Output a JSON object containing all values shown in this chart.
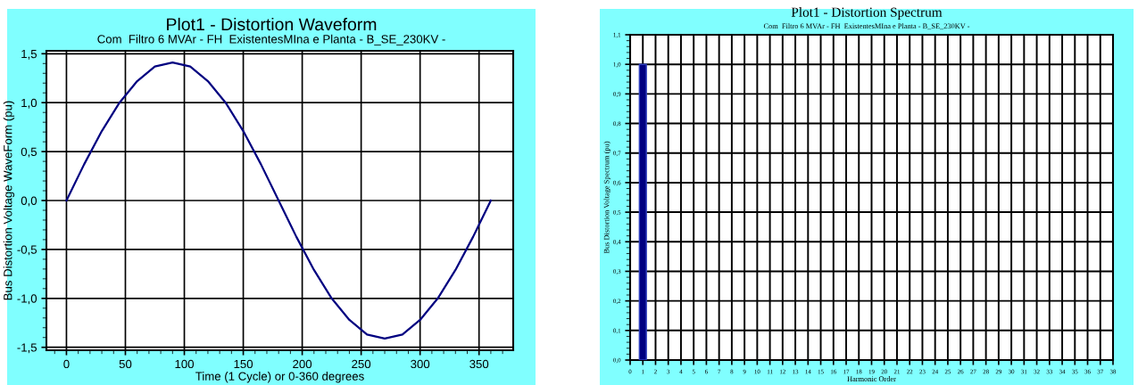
{
  "chart_data": [
    {
      "type": "line",
      "title": "Plot1 - Distortion Waveform",
      "subtitle": "Com  Filtro 6 MVAr - FH  ExistentesMIna e Planta - B_SE_230KV -",
      "xlabel": "Time (1 Cycle) or 0-360 degrees",
      "ylabel": "Bus Distortion Voltage WaveForm (pu)",
      "x": [
        0,
        15,
        30,
        45,
        60,
        75,
        90,
        105,
        120,
        135,
        150,
        165,
        180,
        195,
        210,
        225,
        240,
        255,
        270,
        285,
        300,
        315,
        330,
        345,
        360
      ],
      "series": [
        {
          "color": "#000080",
          "values": [
            0,
            0.37,
            0.71,
            1.0,
            1.22,
            1.37,
            1.41,
            1.37,
            1.22,
            1.0,
            0.71,
            0.37,
            0,
            -0.37,
            -0.71,
            -1.0,
            -1.22,
            -1.37,
            -1.41,
            -1.37,
            -1.22,
            -1.0,
            -0.71,
            -0.37,
            0
          ]
        }
      ],
      "xlim": [
        -17,
        379
      ],
      "xticks": [
        0,
        50,
        100,
        150,
        200,
        250,
        300,
        350
      ],
      "ylim": [
        -1.53,
        1.53
      ],
      "yticks": [
        {
          "value": -1.5,
          "label": "-1,5"
        },
        {
          "value": -1.0,
          "label": "-1,0"
        },
        {
          "value": -0.5,
          "label": "-0,5"
        },
        {
          "value": 0.0,
          "label": "0,0"
        },
        {
          "value": 0.5,
          "label": "0,5"
        },
        {
          "value": 1.0,
          "label": "1,0"
        },
        {
          "value": 1.5,
          "label": "1,5"
        }
      ],
      "grid": true,
      "marker": "none",
      "line_style": "solid",
      "legend": false
    },
    {
      "type": "bar",
      "title": "Plot1 - Distortion Spectrum",
      "subtitle": "Com  Filtro 6 MVAr - FH  ExistentesMIna e Planta - B_SE_230KV -",
      "xlabel": "Harmonic Order",
      "ylabel": "Bus Distortion Voltage Spectrum (pu)",
      "x": [
        1
      ],
      "series": [
        {
          "color": "#000080",
          "values": [
            1.0
          ]
        }
      ],
      "xlim": [
        0,
        38
      ],
      "xticks": [
        0,
        1,
        2,
        3,
        4,
        5,
        6,
        7,
        8,
        9,
        10,
        11,
        12,
        13,
        14,
        15,
        16,
        17,
        18,
        19,
        20,
        21,
        22,
        23,
        24,
        25,
        26,
        27,
        28,
        29,
        30,
        31,
        32,
        33,
        34,
        35,
        36,
        37,
        38
      ],
      "ylim": [
        0,
        1.1
      ],
      "yticks": [
        {
          "value": 0.0,
          "label": "0,0"
        },
        {
          "value": 0.1,
          "label": "0,1"
        },
        {
          "value": 0.2,
          "label": "0,2"
        },
        {
          "value": 0.3,
          "label": "0,3"
        },
        {
          "value": 0.4,
          "label": "0,4"
        },
        {
          "value": 0.5,
          "label": "0,5"
        },
        {
          "value": 0.6,
          "label": "0,6"
        },
        {
          "value": 0.7,
          "label": "0,7"
        },
        {
          "value": 0.8,
          "label": "0,8"
        },
        {
          "value": 0.9,
          "label": "0,9"
        },
        {
          "value": 1.0,
          "label": "1,0"
        },
        {
          "value": 1.1,
          "label": "1,1"
        }
      ],
      "grid": true,
      "legend": false
    }
  ]
}
